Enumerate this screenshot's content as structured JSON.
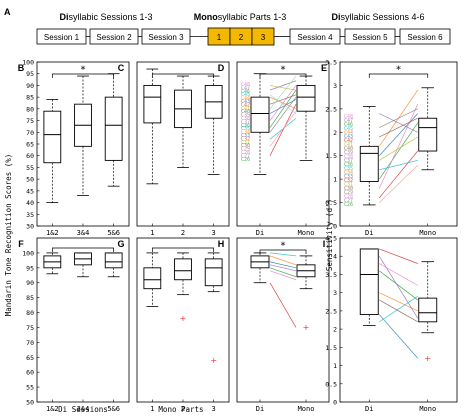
{
  "header": {
    "panel_label": "A",
    "left_title_bold": "Di",
    "left_title_rest": "syllabic Sessions 1-3",
    "mid_title_bold": "Mono",
    "mid_title_rest": "syllabic Parts 1-3",
    "right_title_bold": "Di",
    "right_title_rest": "syllabic Sessions 4-6",
    "sessions_left": [
      "Session 1",
      "Session 2",
      "Session 3"
    ],
    "parts": [
      "1",
      "2",
      "3"
    ],
    "sessions_right": [
      "Session 4",
      "Session 5",
      "Session 6"
    ],
    "part_fill_color": "#f5b800"
  },
  "axes_text": {
    "ylabel_left": "Mandarin Tone Recognition Scores (%)",
    "ylabel_right": "Sensitivity (d')",
    "xlabel_di_sessions": "Di Sessions",
    "xlabel_mono_parts": "Mono Parts"
  },
  "colors": {
    "box": "#000000",
    "sig": "#000000",
    "outlier": "#ff3030",
    "faint_subject_labels": "#c8c8c8"
  },
  "subject_labels_d": [
    "C48",
    "C47",
    "C46",
    "C45",
    "C44",
    "C43",
    "C42",
    "C41",
    "C40",
    "C39",
    "C38",
    "C37",
    "C36",
    "C35",
    "C34",
    "C33",
    "C32",
    "C31",
    "C30",
    "C29",
    "C28",
    "C27",
    "C26"
  ],
  "subject_labels_e": [
    "C48",
    "C47",
    "C46",
    "C45",
    "C44",
    "C43",
    "C42",
    "C41",
    "C40",
    "C39",
    "C38",
    "C37",
    "C36",
    "C35",
    "C34",
    "C33",
    "C32",
    "C31",
    "C30",
    "C29",
    "C28",
    "C27",
    "C26"
  ],
  "chart_data": [
    {
      "panel": "B",
      "type": "box",
      "categories": [
        "1&2",
        "3&4",
        "5&6"
      ],
      "ylim": [
        30,
        100
      ],
      "yticks": [
        30,
        35,
        40,
        45,
        50,
        55,
        60,
        65,
        70,
        75,
        80,
        85,
        90,
        95,
        100
      ],
      "boxes": [
        {
          "whisker_low": 40,
          "q1": 57,
          "median": 69,
          "q3": 79,
          "whisker_high": 84
        },
        {
          "whisker_low": 43,
          "q1": 64,
          "median": 73,
          "q3": 82,
          "whisker_high": 94
        },
        {
          "whisker_low": 47,
          "q1": 58,
          "median": 73,
          "q3": 85,
          "whisker_high": 95
        }
      ],
      "significance": [
        {
          "from": 0,
          "to": 2,
          "label": "*"
        }
      ]
    },
    {
      "panel": "C",
      "type": "box",
      "categories": [
        "1",
        "2",
        "3"
      ],
      "ylim": [
        30,
        100
      ],
      "boxes": [
        {
          "whisker_low": 48,
          "q1": 74,
          "median": 85,
          "q3": 90,
          "whisker_high": 97
        },
        {
          "whisker_low": 55,
          "q1": 72,
          "median": 80,
          "q3": 88,
          "whisker_high": 94
        },
        {
          "whisker_low": 52,
          "q1": 76,
          "median": 83,
          "q3": 90,
          "whisker_high": 94
        }
      ],
      "significance": []
    },
    {
      "panel": "D",
      "type": "box",
      "categories": [
        "Di",
        "Mono"
      ],
      "ylim": [
        30,
        100
      ],
      "boxes": [
        {
          "whisker_low": 52,
          "q1": 70,
          "median": 78,
          "q3": 85,
          "whisker_high": 95
        },
        {
          "whisker_low": 58,
          "q1": 79,
          "median": 85,
          "q3": 90,
          "whisker_high": 94
        }
      ],
      "paired_lines": [
        [
          60,
          82
        ],
        [
          72,
          88
        ],
        [
          78,
          84
        ],
        [
          85,
          80
        ],
        [
          88,
          92
        ],
        [
          67,
          76
        ],
        [
          75,
          90
        ],
        [
          82,
          86
        ],
        [
          90,
          88
        ],
        [
          70,
          85
        ],
        [
          64,
          79
        ],
        [
          80,
          94
        ],
        [
          86,
          78
        ]
      ],
      "significance": [
        {
          "from": 0,
          "to": 1,
          "label": "*"
        }
      ]
    },
    {
      "panel": "E",
      "type": "box",
      "categories": [
        "Di",
        "Mono"
      ],
      "ylim": [
        0,
        3.5
      ],
      "boxes": [
        {
          "whisker_low": 0.45,
          "q1": 0.95,
          "median": 1.55,
          "q3": 1.7,
          "whisker_high": 2.55
        },
        {
          "whisker_low": 1.2,
          "q1": 1.6,
          "median": 2.1,
          "q3": 2.3,
          "whisker_high": 2.95
        }
      ],
      "paired_lines": [
        [
          0.6,
          1.6
        ],
        [
          1.0,
          2.2
        ],
        [
          1.5,
          2.4
        ],
        [
          1.7,
          2.9
        ],
        [
          2.4,
          2.0
        ],
        [
          1.2,
          1.4
        ],
        [
          0.8,
          2.6
        ],
        [
          1.9,
          2.3
        ],
        [
          1.4,
          1.9
        ],
        [
          2.1,
          2.5
        ],
        [
          0.5,
          1.3
        ]
      ],
      "significance": [
        {
          "from": 0,
          "to": 1,
          "label": "*"
        }
      ]
    },
    {
      "panel": "F",
      "type": "box",
      "categories": [
        "1&2",
        "3&4",
        "5&6"
      ],
      "ylim": [
        50,
        105
      ],
      "yticks": [
        50,
        55,
        60,
        65,
        70,
        75,
        80,
        85,
        90,
        95,
        100
      ],
      "boxes": [
        {
          "whisker_low": 93,
          "q1": 95,
          "median": 97,
          "q3": 99,
          "whisker_high": 100
        },
        {
          "whisker_low": 92,
          "q1": 96,
          "median": 98,
          "q3": 100,
          "whisker_high": 100
        },
        {
          "whisker_low": 92,
          "q1": 95,
          "median": 97,
          "q3": 100,
          "whisker_high": 100
        }
      ],
      "significance": []
    },
    {
      "panel": "G",
      "type": "box",
      "categories": [
        "1",
        "2",
        "3"
      ],
      "ylim": [
        50,
        105
      ],
      "boxes": [
        {
          "whisker_low": 82,
          "q1": 88,
          "median": 91,
          "q3": 95,
          "whisker_high": 100
        },
        {
          "whisker_low": 86,
          "q1": 91,
          "median": 94,
          "q3": 98,
          "whisker_high": 100
        },
        {
          "whisker_low": 87,
          "q1": 89,
          "median": 95,
          "q3": 98,
          "whisker_high": 100
        }
      ],
      "outliers": [
        {
          "cat": 1,
          "y": 78
        },
        {
          "cat": 2,
          "y": 64
        }
      ],
      "significance": []
    },
    {
      "panel": "H",
      "type": "box",
      "categories": [
        "Di",
        "Mono"
      ],
      "ylim": [
        50,
        105
      ],
      "boxes": [
        {
          "whisker_low": 90,
          "q1": 95,
          "median": 97,
          "q3": 99,
          "whisker_high": 100
        },
        {
          "whisker_low": 88,
          "q1": 92,
          "median": 94,
          "q3": 96,
          "whisker_high": 99
        }
      ],
      "outliers": [
        {
          "cat": 1,
          "y": 75
        }
      ],
      "paired_lines": [
        [
          90,
          75
        ],
        [
          95,
          92
        ],
        [
          97,
          95
        ],
        [
          99,
          96
        ],
        [
          96,
          94
        ],
        [
          100,
          99
        ],
        [
          94,
          91
        ]
      ],
      "significance": [
        {
          "from": 0,
          "to": 1,
          "label": "*"
        }
      ]
    },
    {
      "panel": "I",
      "type": "box",
      "categories": [
        "Di",
        "Mono"
      ],
      "ylim": [
        0,
        4.5
      ],
      "boxes": [
        {
          "whisker_low": 2.1,
          "q1": 2.4,
          "median": 3.5,
          "q3": 4.2,
          "whisker_high": 4.2
        },
        {
          "whisker_low": 1.9,
          "q1": 2.2,
          "median": 2.45,
          "q3": 2.85,
          "whisker_high": 3.85
        }
      ],
      "outliers": [
        {
          "cat": 1,
          "y": 1.2
        }
      ],
      "paired_lines": [
        [
          4.2,
          3.8
        ],
        [
          3.6,
          2.8
        ],
        [
          2.4,
          1.2
        ],
        [
          3.0,
          2.5
        ],
        [
          4.0,
          2.3
        ],
        [
          2.2,
          2.9
        ],
        [
          3.8,
          3.2
        ],
        [
          2.8,
          2.2
        ]
      ],
      "significance": []
    }
  ]
}
